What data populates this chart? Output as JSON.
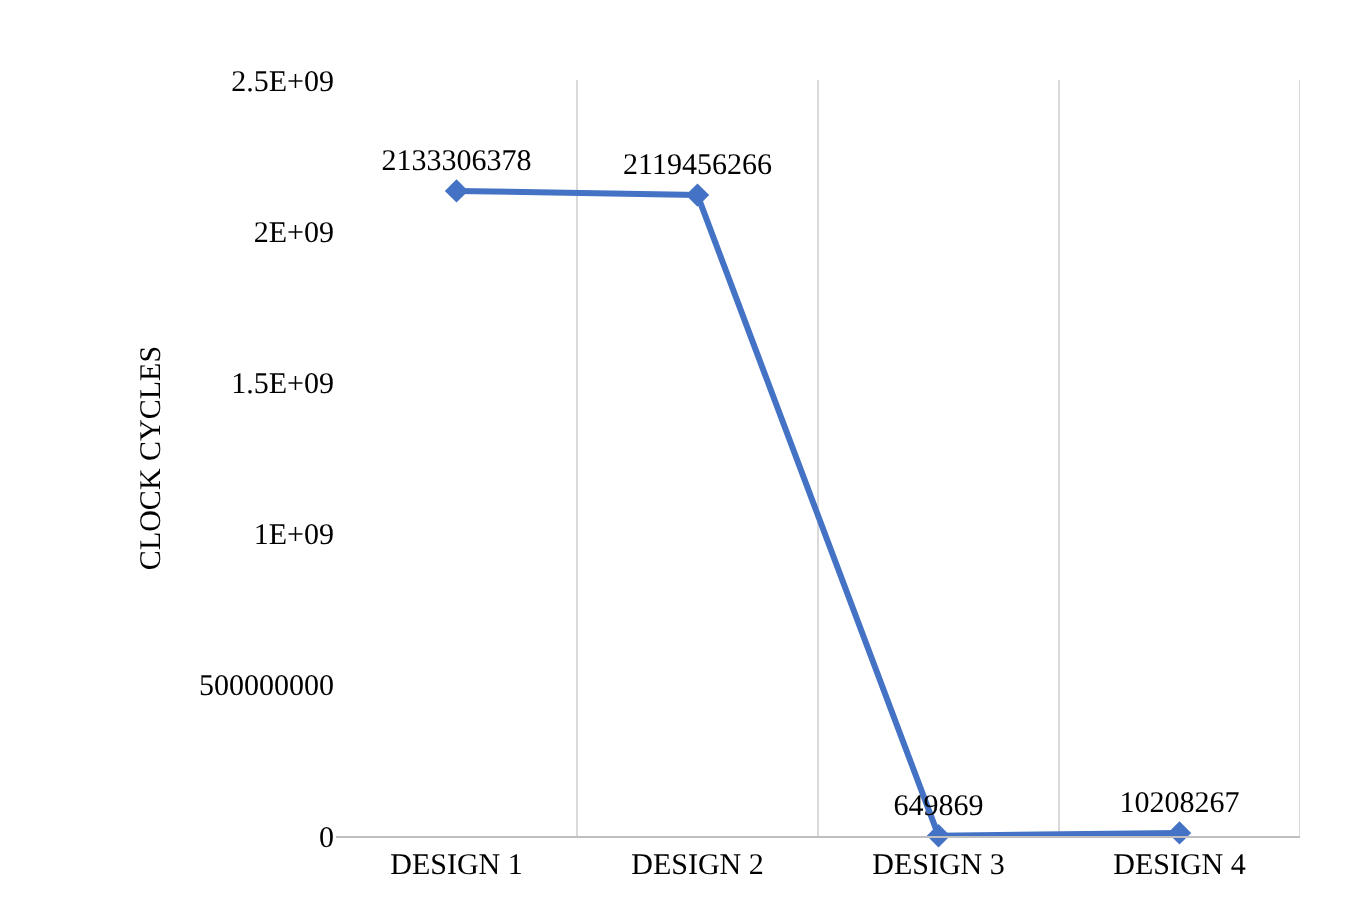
{
  "chart_data": {
    "type": "line",
    "ylabel": "CLOCK CYCLES",
    "categories": [
      "DESIGN 1",
      "DESIGN 2",
      "DESIGN 3",
      "DESIGN 4"
    ],
    "series": [
      {
        "color": "#4472c4",
        "values": [
          2133306378,
          2119456266,
          649869,
          10208267
        ]
      }
    ],
    "ylim": [
      0,
      2500000000
    ],
    "yticks": [
      0,
      {
        "value": 500000000,
        "label": "500000000"
      },
      {
        "value": 1000000000,
        "label": "1E+09"
      },
      {
        "value": 1500000000,
        "label": "1.5E+09"
      },
      {
        "value": 2000000000,
        "label": "2E+09"
      },
      {
        "value": 2500000000,
        "label": "2.5E+09"
      }
    ],
    "data_labels": true,
    "grid": "x",
    "marker": "diamond",
    "line_style": "solid",
    "legend": false
  }
}
